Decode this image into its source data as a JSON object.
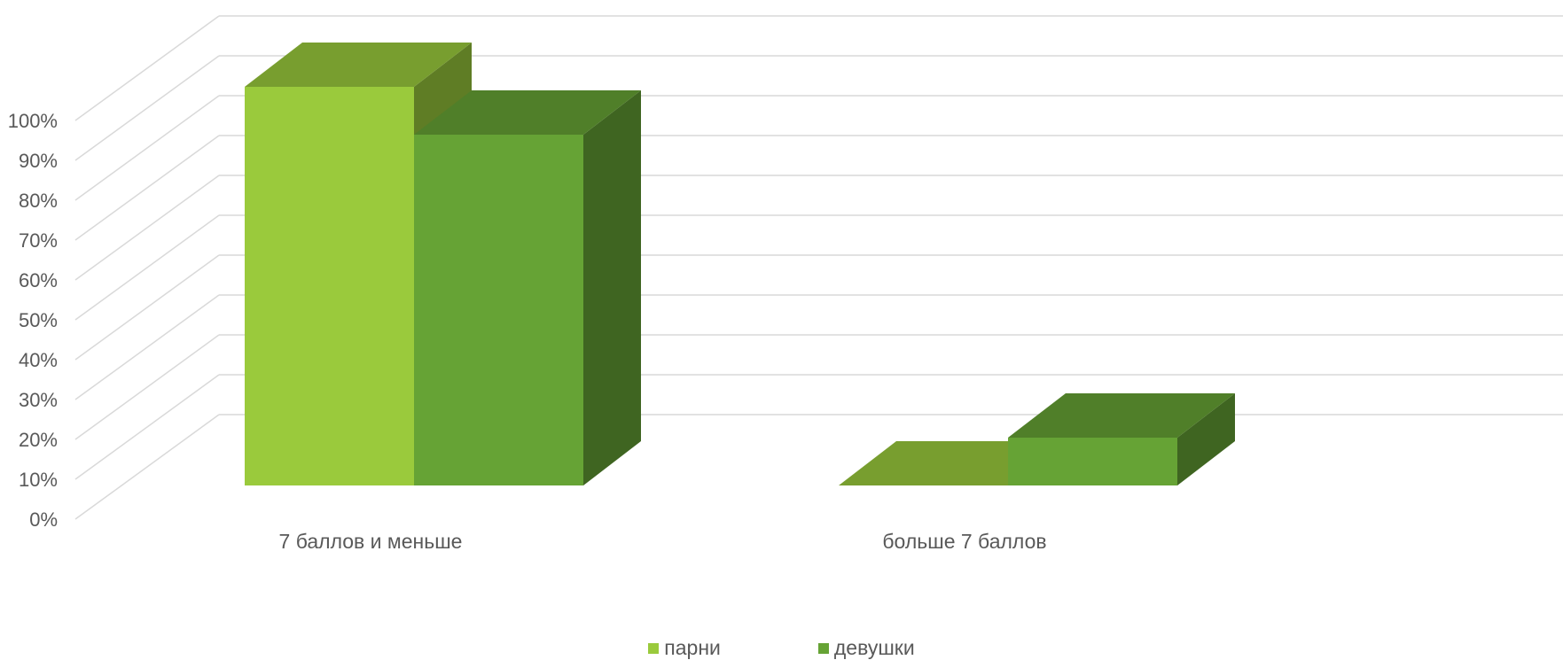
{
  "chart_data": {
    "type": "bar",
    "categories": [
      "7 баллов и меньше",
      "больше 7 баллов"
    ],
    "series": [
      {
        "name": "парни",
        "values": [
          100,
          0
        ],
        "color": "#9ACA3C"
      },
      {
        "name": "девушки",
        "values": [
          88,
          12
        ],
        "color": "#66A335"
      }
    ],
    "yticks": [
      "0%",
      "10%",
      "20%",
      "30%",
      "40%",
      "50%",
      "60%",
      "70%",
      "80%",
      "90%",
      "100%"
    ],
    "ylim": [
      0,
      100
    ],
    "grid": true,
    "legend_position": "bottom",
    "style": "3d-column"
  }
}
